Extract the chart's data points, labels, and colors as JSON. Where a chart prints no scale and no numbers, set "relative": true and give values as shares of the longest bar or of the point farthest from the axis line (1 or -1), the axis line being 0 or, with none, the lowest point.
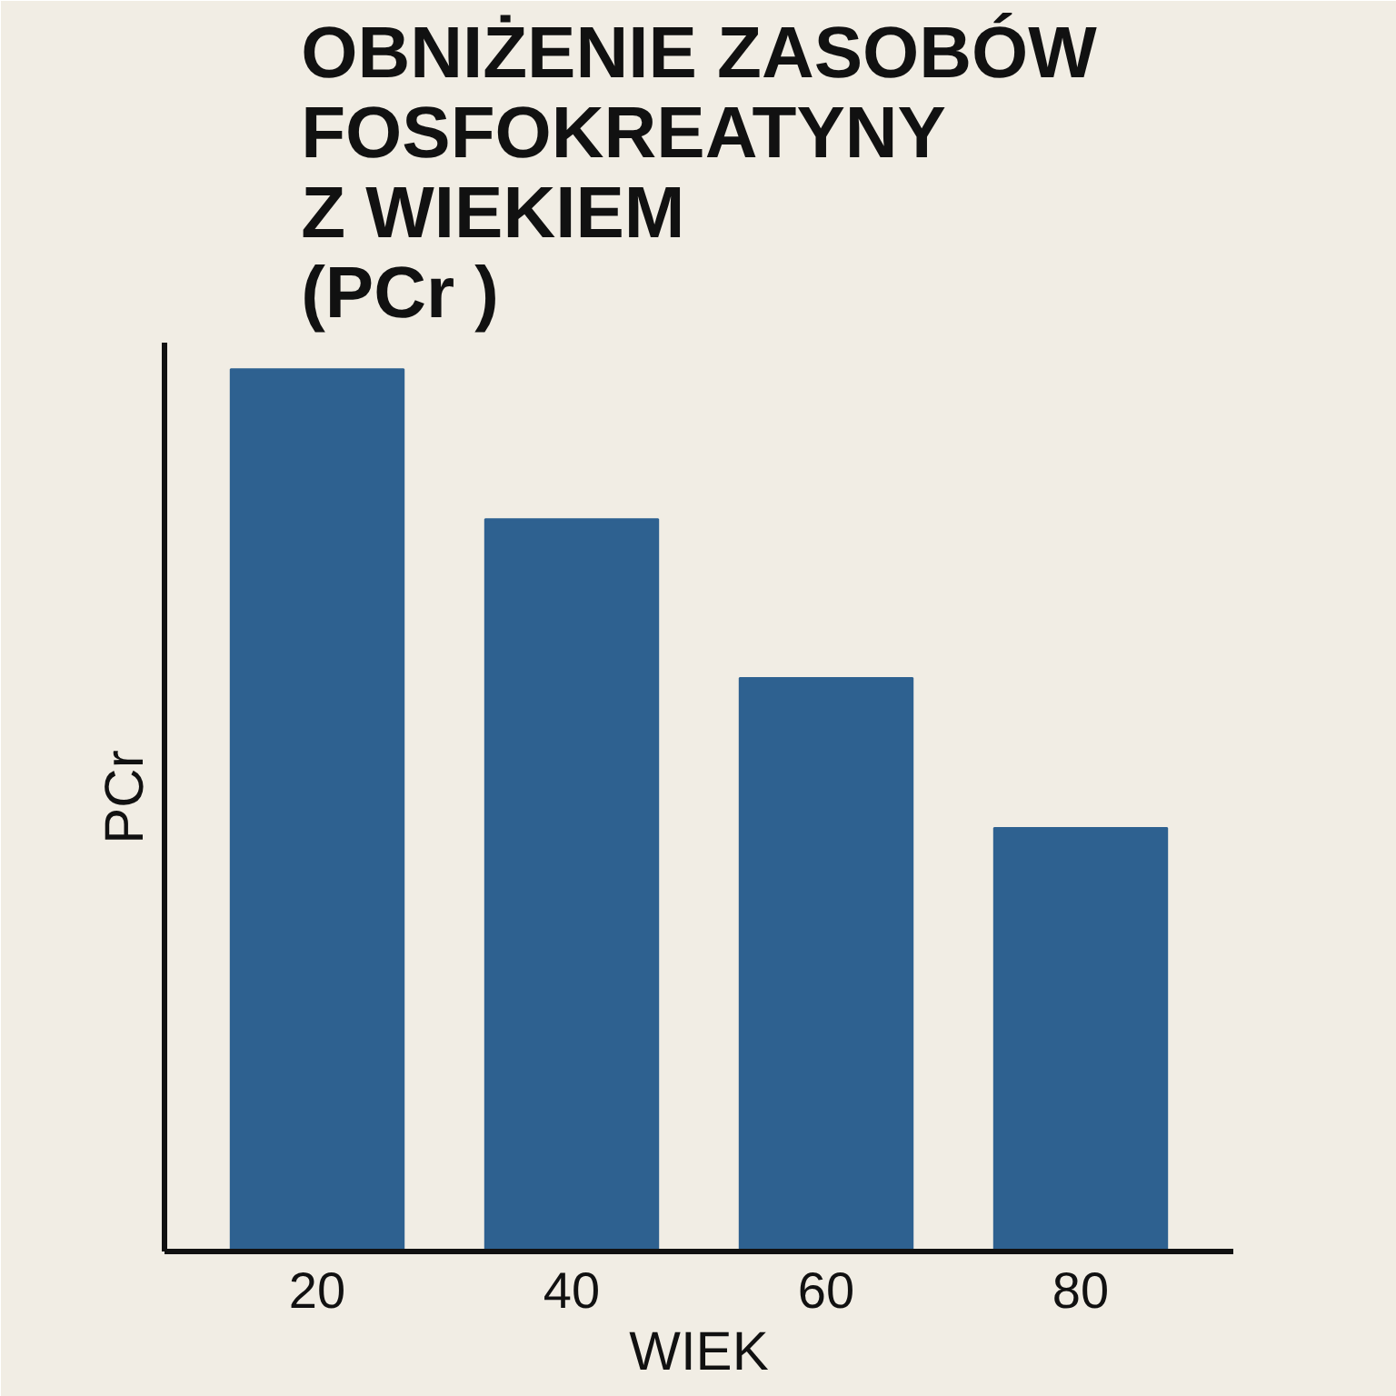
{
  "chart_data": {
    "type": "bar",
    "title": "OBNIŻENIE ZASOBÓW\nFOSFOKREATYNY\nZ WIEKIEM\n(PCr )",
    "xlabel": "WIEK",
    "ylabel": "PCr",
    "categories": [
      "20",
      "40",
      "60",
      "80"
    ],
    "values": [
      1,
      0.83,
      0.65,
      0.48
    ],
    "color": "#2e6190",
    "relative": true,
    "grid": false
  }
}
